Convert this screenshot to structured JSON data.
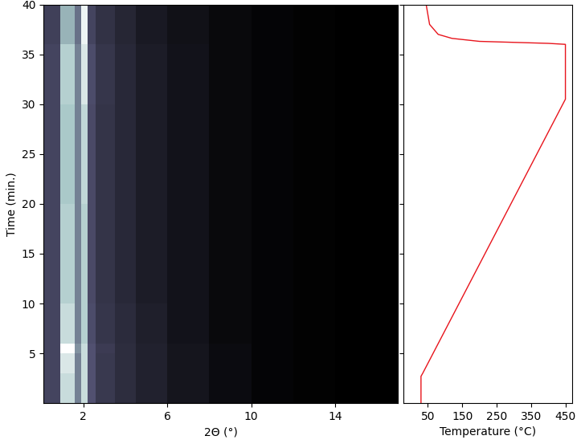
{
  "chart_data": [
    {
      "type": "heatmap",
      "xlabel": "2Θ (°)",
      "ylabel": "Time (min.)",
      "xlim": [
        0.1,
        17
      ],
      "ylim": [
        0,
        40
      ],
      "xticks": [
        2,
        6,
        10,
        14
      ],
      "yticks": [
        5,
        10,
        15,
        20,
        25,
        30,
        35,
        40
      ],
      "x_edges": [
        0.1,
        0.9,
        1.6,
        1.9,
        2.2,
        2.6,
        3.5,
        4.5,
        6,
        8,
        10,
        12,
        14,
        17
      ],
      "y_edges": [
        0,
        3,
        5,
        6,
        10,
        20,
        30,
        36,
        40
      ],
      "cells": [
        [
          0.3,
          0.8,
          0.5,
          0.8,
          0.35,
          0.25,
          0.2,
          0.15,
          0.1,
          0.06,
          0.03,
          0.02,
          0.01
        ],
        [
          0.3,
          0.85,
          0.5,
          0.8,
          0.35,
          0.25,
          0.2,
          0.15,
          0.1,
          0.06,
          0.03,
          0.02,
          0.01
        ],
        [
          0.3,
          0.95,
          0.55,
          0.8,
          0.35,
          0.26,
          0.2,
          0.15,
          0.1,
          0.06,
          0.03,
          0.02,
          0.01
        ],
        [
          0.3,
          0.8,
          0.5,
          0.75,
          0.33,
          0.24,
          0.19,
          0.14,
          0.09,
          0.05,
          0.03,
          0.02,
          0.01
        ],
        [
          0.3,
          0.75,
          0.5,
          0.75,
          0.32,
          0.23,
          0.18,
          0.13,
          0.09,
          0.05,
          0.03,
          0.02,
          0.01
        ],
        [
          0.3,
          0.72,
          0.5,
          0.78,
          0.32,
          0.23,
          0.18,
          0.13,
          0.09,
          0.05,
          0.03,
          0.02,
          0.01
        ],
        [
          0.3,
          0.75,
          0.5,
          0.85,
          0.33,
          0.24,
          0.18,
          0.13,
          0.09,
          0.05,
          0.03,
          0.02,
          0.01
        ],
        [
          0.28,
          0.65,
          0.45,
          0.9,
          0.3,
          0.22,
          0.17,
          0.12,
          0.08,
          0.05,
          0.03,
          0.02,
          0.01
        ]
      ]
    },
    {
      "type": "line",
      "xlabel": "Temperature (°C)",
      "xlim": [
        -20,
        470
      ],
      "ylim": [
        0,
        40
      ],
      "xticks": [
        50,
        150,
        250,
        350,
        450
      ],
      "yticks": [
        5,
        10,
        15,
        20,
        25,
        30,
        35,
        40
      ],
      "tick_labels": "x",
      "color": "#e8141c",
      "x": [
        30,
        30,
        35,
        450,
        450,
        400,
        200,
        120,
        80,
        55,
        45
      ],
      "y": [
        0,
        2.7,
        3,
        30.5,
        36,
        36.1,
        36.3,
        36.6,
        37,
        38,
        40
      ]
    }
  ]
}
